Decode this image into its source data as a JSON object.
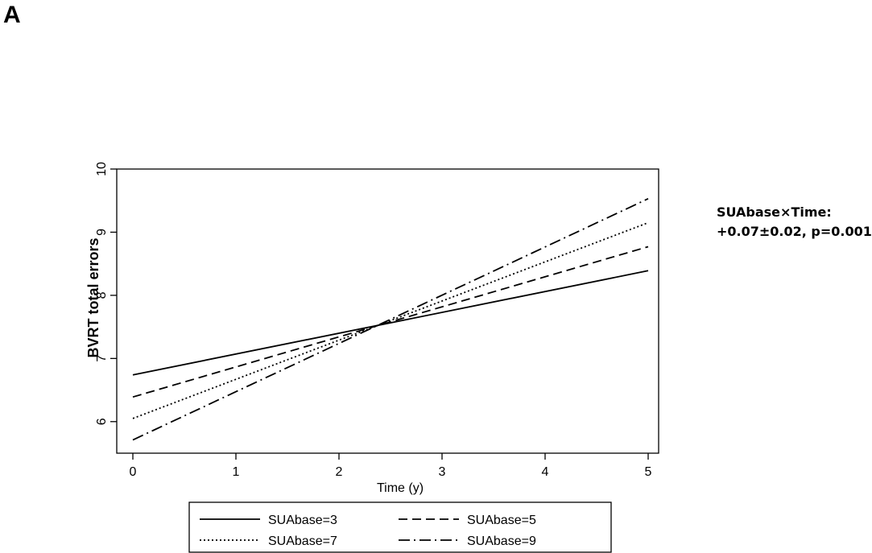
{
  "panel_label": "A",
  "annotation": {
    "line1": "SUAbase×Time:",
    "line2": "+0.07±0.02, p=0.001"
  },
  "chart_data": {
    "type": "line",
    "xlabel": "Time (y)",
    "ylabel": "BVRT total errors",
    "xlim": [
      0,
      5
    ],
    "ylim": [
      5.5,
      10
    ],
    "xticks": [
      0,
      1,
      2,
      3,
      4,
      5
    ],
    "yticks": [
      6,
      7,
      8,
      9,
      10
    ],
    "grid": false,
    "legend_position": "bottom",
    "series": [
      {
        "name": "SUAbase=3",
        "style": "solid",
        "x": [
          0,
          5
        ],
        "y": [
          6.74,
          8.39
        ]
      },
      {
        "name": "SUAbase=5",
        "style": "dashed",
        "x": [
          0,
          5
        ],
        "y": [
          6.39,
          8.77
        ]
      },
      {
        "name": "SUAbase=7",
        "style": "dotted",
        "x": [
          0,
          5
        ],
        "y": [
          6.05,
          9.15
        ]
      },
      {
        "name": "SUAbase=9",
        "style": "dash-dot",
        "x": [
          0,
          5
        ],
        "y": [
          5.71,
          9.53
        ]
      }
    ]
  }
}
